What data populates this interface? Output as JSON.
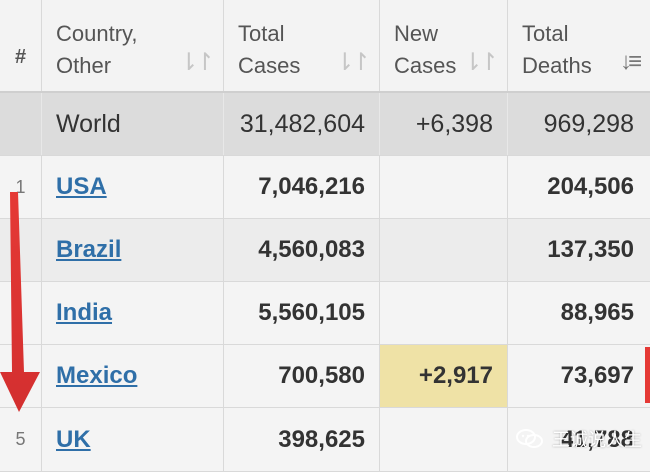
{
  "table": {
    "headers": [
      {
        "label": "#",
        "sort_icon": "none"
      },
      {
        "label": "Country,\nOther",
        "sort_icon": "sort-both-icon"
      },
      {
        "label": "Total\nCases",
        "sort_icon": "sort-both-icon"
      },
      {
        "label": "New\nCases",
        "sort_icon": "sort-both-icon"
      },
      {
        "label": "Total\nDeaths",
        "sort_icon": "sort-descending-icon"
      }
    ],
    "world": {
      "name": "World",
      "total_cases": "31,482,604",
      "new_cases": "+6,398",
      "total_deaths": "969,298"
    },
    "rows": [
      {
        "rank": "1",
        "country": "USA",
        "total_cases": "7,046,216",
        "new_cases": "",
        "total_deaths": "204,506"
      },
      {
        "rank": "",
        "country": "Brazil",
        "total_cases": "4,560,083",
        "new_cases": "",
        "total_deaths": "137,350"
      },
      {
        "rank": "",
        "country": "India",
        "total_cases": "5,560,105",
        "new_cases": "",
        "total_deaths": "88,965"
      },
      {
        "rank": "",
        "country": "Mexico",
        "total_cases": "700,580",
        "new_cases": "+2,917",
        "total_deaths": "73,697"
      },
      {
        "rank": "5",
        "country": "UK",
        "total_cases": "398,625",
        "new_cases": "",
        "total_deaths": "41,788"
      }
    ]
  },
  "colors": {
    "link": "#2f6fa8",
    "new_cases_highlight": "#efe2a6",
    "arrow": "#e53935"
  },
  "watermark": {
    "text": "王诚说人生",
    "icon": "wechat-logo-icon"
  }
}
